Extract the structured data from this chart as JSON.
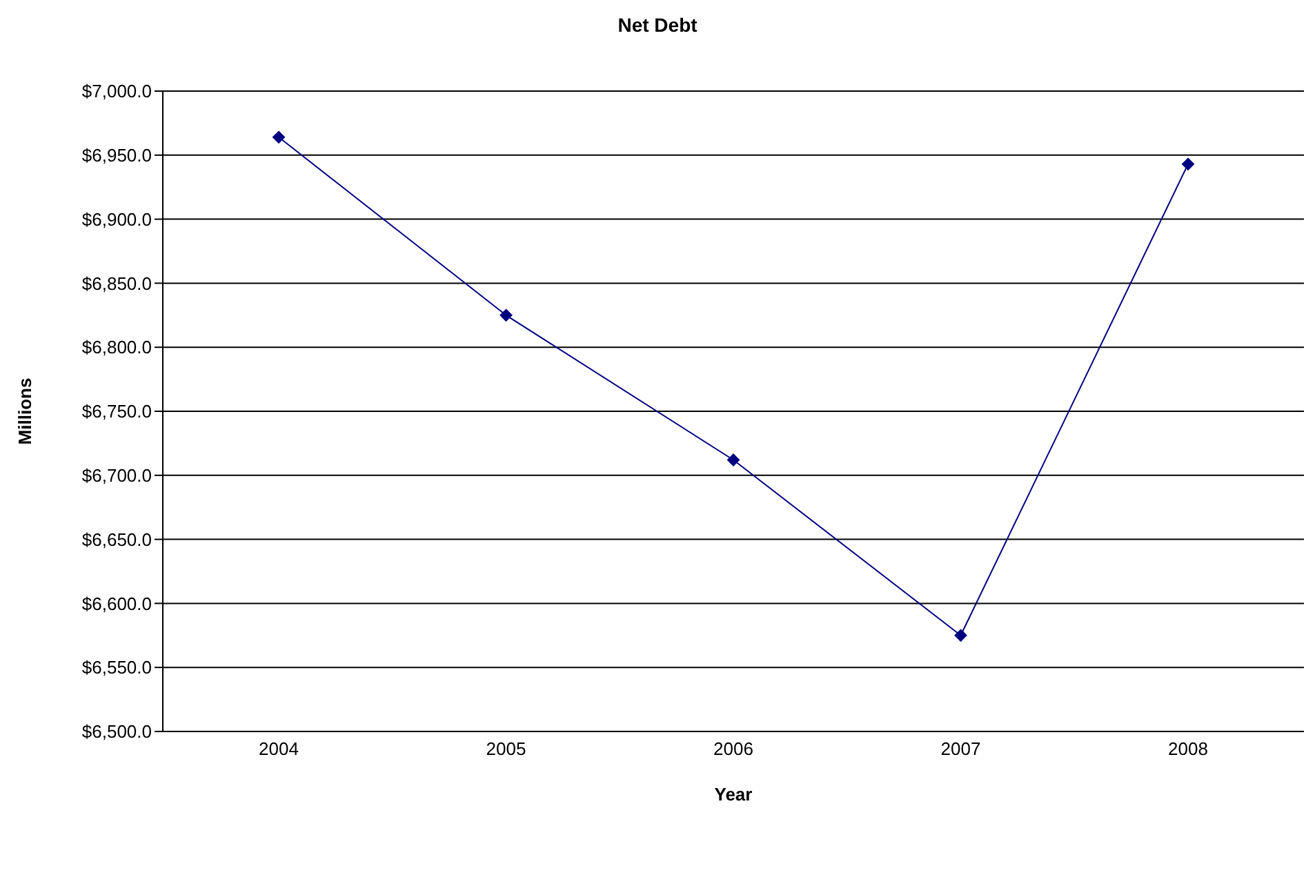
{
  "chart_data": {
    "type": "line",
    "title": "Net Debt",
    "xlabel": "Year",
    "ylabel": "Millions",
    "categories": [
      "2004",
      "2005",
      "2006",
      "2007",
      "2008"
    ],
    "series": [
      {
        "color": "#000080",
        "values": [
          6964,
          6825,
          6712,
          6575,
          6943
        ]
      }
    ],
    "ylim": [
      6500,
      7000
    ],
    "yticks": [
      {
        "value": 6500,
        "label": "$6,500.0"
      },
      {
        "value": 6550,
        "label": "$6,550.0"
      },
      {
        "value": 6600,
        "label": "$6,600.0"
      },
      {
        "value": 6650,
        "label": "$6,650.0"
      },
      {
        "value": 6700,
        "label": "$6,700.0"
      },
      {
        "value": 6750,
        "label": "$6,750.0"
      },
      {
        "value": 6800,
        "label": "$6,800.0"
      },
      {
        "value": 6850,
        "label": "$6,850.0"
      },
      {
        "value": 6900,
        "label": "$6,900.0"
      },
      {
        "value": 6950,
        "label": "$6,950.0"
      },
      {
        "value": 7000,
        "label": "$7,000.0"
      }
    ],
    "grid": "y",
    "legend": false,
    "marker": "diamond",
    "line_style": "solid"
  }
}
